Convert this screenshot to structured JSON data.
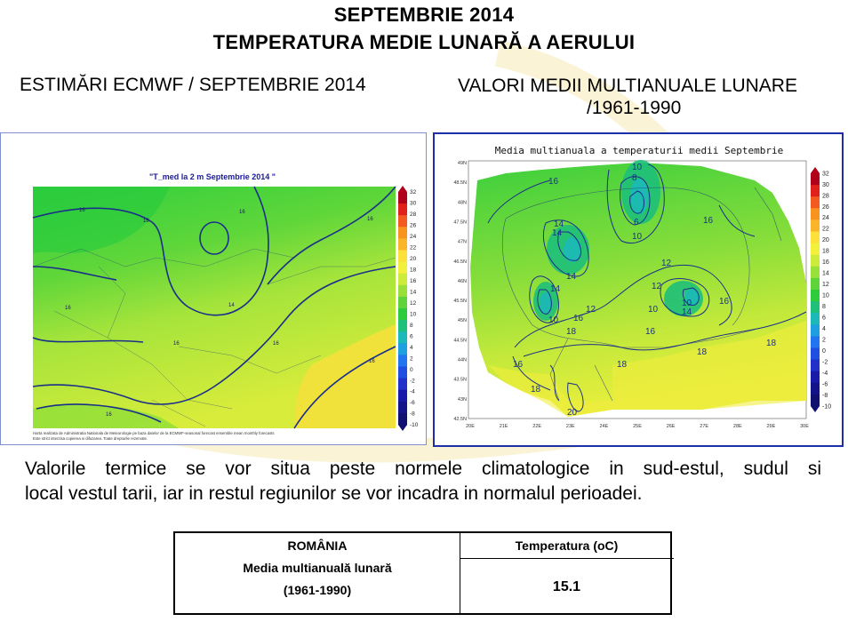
{
  "header": {
    "title_line1": "SEPTEMBRIE 2014",
    "title_line2": "TEMPERATURA MEDIE LUNARĂ A AERULUI"
  },
  "left_panel": {
    "caption": "ESTIMĂRI ECMWF / SEPTEMBRIE 2014",
    "map_title": "\"T_med la 2 m Septembrie 2014 \"",
    "colorbar_ticks": [
      "32",
      "30",
      "28",
      "26",
      "24",
      "22",
      "20",
      "18",
      "16",
      "14",
      "12",
      "10",
      "8",
      "6",
      "4",
      "2",
      "0",
      "-2",
      "-4",
      "-6",
      "-8",
      "-10"
    ],
    "contour_labels": [
      "16",
      "16",
      "16",
      "14",
      "16",
      "14",
      "16",
      "16",
      "16",
      "16",
      "16"
    ],
    "footnote_line1": "Harta realizata de Administratia Nationala de Meteorologie pe baza datelor de la ECMWF-seasonal forecast ensemble mean monthly forecasts",
    "footnote_line2": "Este strict interzisa copierea si difuzarea. Toate drepturile rezervate."
  },
  "right_panel": {
    "caption_line1": "VALORI MEDII MULTIANUALE LUNARE",
    "caption_line2": "/1961-1990",
    "map_title": "Media multianuala a temperaturii medii Septembrie",
    "y_ticks": [
      "49N",
      "48.5N",
      "48N",
      "47.5N",
      "47N",
      "46.5N",
      "46N",
      "45.5N",
      "45N",
      "44.5N",
      "44N",
      "43.5N",
      "43N",
      "42.5N"
    ],
    "x_ticks": [
      "20E",
      "21E",
      "22E",
      "23E",
      "24E",
      "25E",
      "26E",
      "27E",
      "28E",
      "29E",
      "30E"
    ],
    "colorbar_ticks": [
      "32",
      "30",
      "28",
      "26",
      "24",
      "22",
      "20",
      "18",
      "16",
      "14",
      "12",
      "10",
      "8",
      "6",
      "4",
      "2",
      "0",
      "-2",
      "-4",
      "-6",
      "-8",
      "-10"
    ],
    "contour_labels": [
      "16",
      "10",
      "8",
      "6",
      "10",
      "16",
      "14",
      "14",
      "12",
      "14",
      "12",
      "14",
      "10",
      "16",
      "12",
      "12",
      "10",
      "14",
      "10",
      "16",
      "18",
      "16",
      "16",
      "18",
      "18",
      "18",
      "16",
      "18",
      "20"
    ]
  },
  "paragraph": {
    "line1": "Valorile termice se vor situa peste normele climatologice in sud-estul, sudul si",
    "line2": "local vestul tarii, iar in restul regiunilor se vor incadra in normalul perioadei."
  },
  "table": {
    "country": "ROMÂNIA",
    "label": "Media multianuală lunară",
    "period": "(1961-1990)",
    "column_header": "Temperatura (oC)",
    "value": "15.1"
  },
  "colors": {
    "contour": "#1d3a8a",
    "colorbar": [
      "#b0001a",
      "#e0201a",
      "#f25a1f",
      "#f7931e",
      "#fbb52b",
      "#fde03a",
      "#f3f03c",
      "#cdeb3a",
      "#9ae03a",
      "#5fd33a",
      "#2ecb3c",
      "#1ec07a",
      "#1cb9b8",
      "#1e9fe0",
      "#2176ef",
      "#1f4fe0",
      "#2030c8",
      "#1a1aa8",
      "#14148a",
      "#101070"
    ]
  }
}
